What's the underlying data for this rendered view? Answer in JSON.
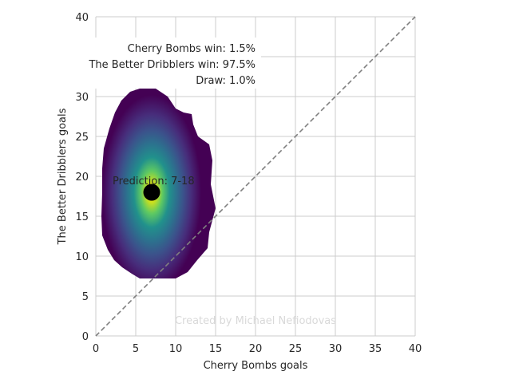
{
  "chart_data": {
    "type": "scatter",
    "xlabel": "Cherry Bombs goals",
    "ylabel": "The Better Dribblers goals",
    "xlim": [
      0,
      40
    ],
    "ylim": [
      0,
      40
    ],
    "x_ticks": [
      "0",
      "5",
      "10",
      "15",
      "20",
      "25",
      "30",
      "35",
      "40"
    ],
    "y_ticks": [
      "0",
      "5",
      "10",
      "15",
      "20",
      "25",
      "30",
      "35",
      "40"
    ],
    "grid": true,
    "reference_line": {
      "from": [
        0,
        0
      ],
      "to": [
        40,
        40
      ],
      "style": "dashed",
      "color": "#808080"
    },
    "density": {
      "colormap": "viridis",
      "center": [
        7,
        18
      ],
      "boundary": [
        [
          5.5,
          31
        ],
        [
          7.5,
          31
        ],
        [
          9,
          30
        ],
        [
          10,
          28.5
        ],
        [
          11,
          28
        ],
        [
          12,
          27.8
        ],
        [
          12.2,
          26.5
        ],
        [
          12.8,
          25
        ],
        [
          14.2,
          24
        ],
        [
          14.6,
          22
        ],
        [
          14.4,
          19
        ],
        [
          15,
          16
        ],
        [
          14.2,
          13
        ],
        [
          14,
          11
        ],
        [
          12.7,
          9.5
        ],
        [
          11.5,
          8
        ],
        [
          10,
          7.2
        ],
        [
          8.5,
          7.2
        ],
        [
          7,
          7.2
        ],
        [
          5.5,
          7.2
        ],
        [
          4.5,
          7.8
        ],
        [
          3.3,
          8.6
        ],
        [
          2.3,
          9.5
        ],
        [
          1.5,
          10.8
        ],
        [
          0.8,
          12.6
        ],
        [
          0.7,
          15
        ],
        [
          0.8,
          18
        ],
        [
          0.8,
          21
        ],
        [
          1,
          23.5
        ],
        [
          1.7,
          26
        ],
        [
          2.4,
          28
        ],
        [
          3.2,
          29.5
        ],
        [
          4.3,
          30.6
        ]
      ]
    },
    "prediction_point": {
      "x": 7,
      "y": 18,
      "color": "#000000"
    },
    "prediction_label": "Prediction: 7-18",
    "summary": [
      "Cherry Bombs win: 1.5%",
      "The Better Dribblers win: 97.5%",
      "Draw: 1.0%"
    ],
    "watermark": "Created by Michael Nefiodovas"
  }
}
